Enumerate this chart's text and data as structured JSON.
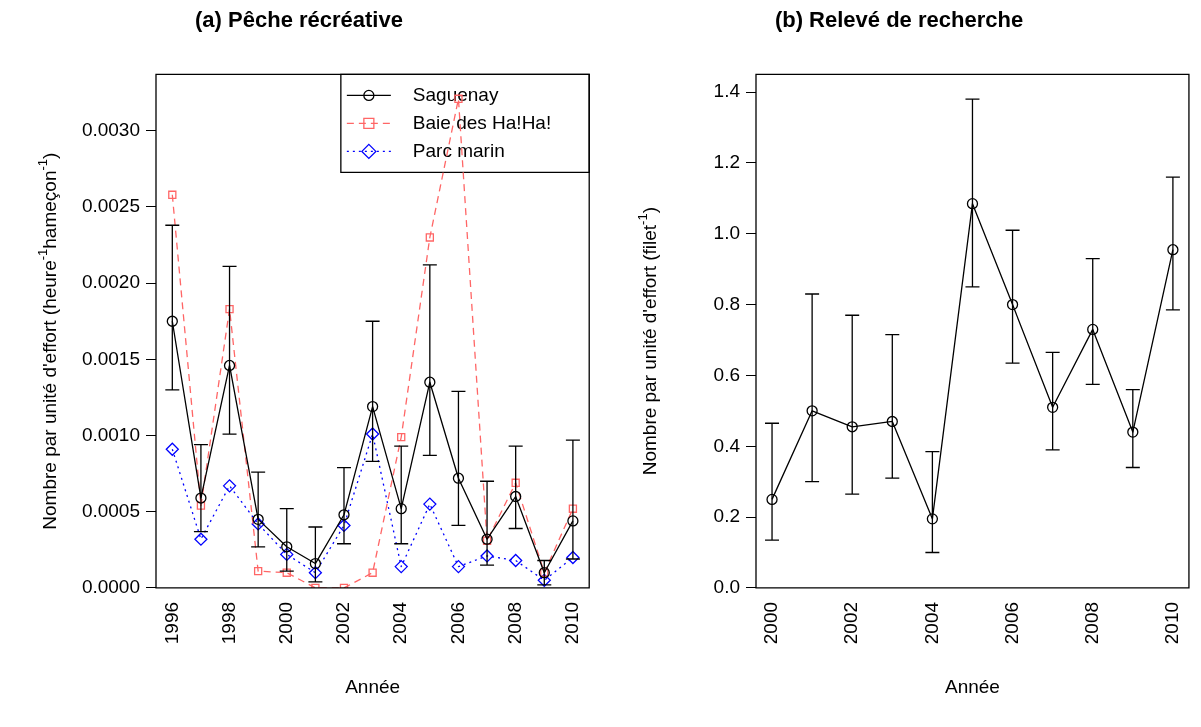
{
  "chart_data": [
    {
      "type": "line",
      "title": "(a) Pêche récréative",
      "xlabel": "Année",
      "ylabel": "Nombre par unité d'effort (heure$^{-1}$hameçon$^{-1}$)",
      "x": [
        1996,
        1997,
        1998,
        1999,
        2000,
        2001,
        2002,
        2003,
        2004,
        2005,
        2006,
        2007,
        2008,
        2009,
        2010
      ],
      "xlim": [
        1995.43,
        2010.57
      ],
      "xticks": [
        1996,
        1998,
        2000,
        2002,
        2004,
        2006,
        2008,
        2010
      ],
      "ylim": [
        0,
        0.00337
      ],
      "yticks": [
        {
          "value": 0,
          "label": "0.0000"
        },
        {
          "value": 0.0005,
          "label": "0.0005"
        },
        {
          "value": 0.001,
          "label": "0.0010"
        },
        {
          "value": 0.0015,
          "label": "0.0015"
        },
        {
          "value": 0.002,
          "label": "0.0020"
        },
        {
          "value": 0.0025,
          "label": "0.0025"
        },
        {
          "value": 0.003,
          "label": "0.0030"
        }
      ],
      "grid": false,
      "legend": "top right",
      "series": [
        {
          "name": "Saguenay",
          "color": "#000000",
          "marker": "circle",
          "line_style": "solid",
          "values": [
            0.00175,
            0.00059,
            0.00146,
            0.00045,
            0.00027,
            0.00016,
            0.00048,
            0.00119,
            0.00052,
            0.00135,
            0.00072,
            0.00032,
            0.0006,
            0.0001,
            0.00044
          ],
          "errors": [
            [
              0.0013,
              0.00238
            ],
            [
              0.00037,
              0.00094
            ],
            [
              0.00101,
              0.00211
            ],
            [
              0.00027,
              0.00076
            ],
            [
              0.00011,
              0.00052
            ],
            [
              4e-05,
              0.0004
            ],
            [
              0.00029,
              0.00079
            ],
            [
              0.00083,
              0.00175
            ],
            [
              0.00029,
              0.00093
            ],
            [
              0.00087,
              0.00212
            ],
            [
              0.00041,
              0.00129
            ],
            [
              0.00015,
              0.0007
            ],
            [
              0.00039,
              0.00093
            ],
            [
              2e-05,
              0.00018
            ],
            [
              0.00019,
              0.00097
            ]
          ]
        },
        {
          "name": "Baie des Ha!Ha!",
          "color": "#ff6666",
          "marker": "square",
          "line_style": "dashed",
          "values": [
            0.00258,
            0.00054,
            0.00183,
            0.00011,
            0.0001,
            0,
            0,
            0.0001,
            0.00099,
            0.0023,
            0.00321,
            0.00031,
            0.00069,
            0.0001,
            0.00052
          ]
        },
        {
          "name": "Parc marin",
          "color": "#0000ff",
          "marker": "diamond",
          "line_style": "dotted",
          "values": [
            0.00091,
            0.00032,
            0.00067,
            0.00042,
            0.00022,
            0.0001,
            0.00041,
            0.00101,
            0.00014,
            0.00055,
            0.00014,
            0.00021,
            0.00018,
            5e-05,
            0.0002
          ]
        }
      ]
    },
    {
      "type": "line",
      "title": "(b) Relevé de recherche",
      "xlabel": "Année",
      "ylabel": "Nombre par unité d'effort (filet$^{-1}$)",
      "x": [
        2000,
        2001,
        2002,
        2003,
        2004,
        2005,
        2006,
        2007,
        2008,
        2009,
        2010
      ],
      "xlim": [
        1999.6,
        2010.4
      ],
      "xticks": [
        2000,
        2002,
        2004,
        2006,
        2008,
        2010
      ],
      "ylim": [
        0,
        1.45
      ],
      "yticks": [
        {
          "value": 0,
          "label": "0.0"
        },
        {
          "value": 0.2,
          "label": "0.2"
        },
        {
          "value": 0.4,
          "label": "0.4"
        },
        {
          "value": 0.6,
          "label": "0.6"
        },
        {
          "value": 0.8,
          "label": "0.8"
        },
        {
          "value": 1,
          "label": "1.0"
        },
        {
          "value": 1.2,
          "label": "1.2"
        },
        {
          "value": 1.4,
          "label": "1.4"
        }
      ],
      "grid": false,
      "series": [
        {
          "color": "#000000",
          "marker": "circle",
          "line_style": "solid",
          "values": [
            0.25,
            0.5,
            0.455,
            0.47,
            0.195,
            1.085,
            0.8,
            0.51,
            0.73,
            0.44,
            0.955
          ],
          "errors": [
            [
              0.135,
              0.465
            ],
            [
              0.3,
              0.83
            ],
            [
              0.265,
              0.77
            ],
            [
              0.31,
              0.715
            ],
            [
              0.1,
              0.385
            ],
            [
              0.85,
              1.38
            ],
            [
              0.635,
              1.01
            ],
            [
              0.39,
              0.665
            ],
            [
              0.575,
              0.93
            ],
            [
              0.34,
              0.56
            ],
            [
              0.785,
              1.16
            ]
          ]
        }
      ]
    }
  ]
}
